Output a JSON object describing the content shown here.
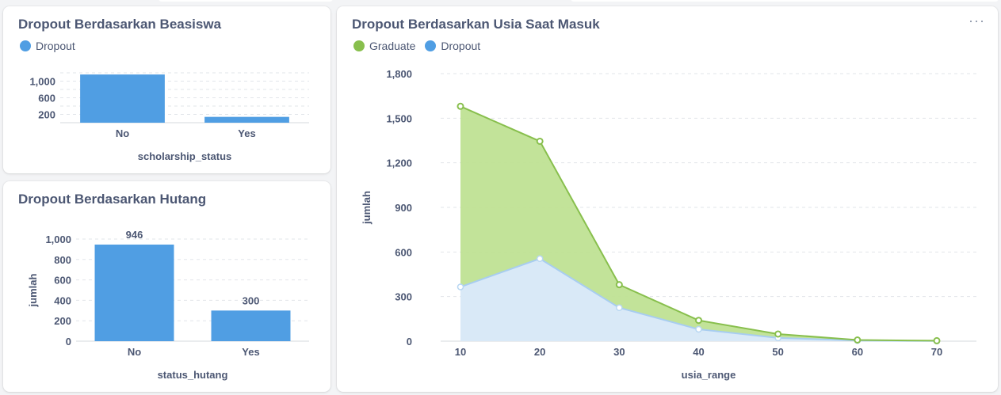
{
  "colors": {
    "dropout": "#509ee3",
    "graduate": "#88bf4d",
    "graduate_fill": "#bfe194",
    "dropout_fill": "#d9e9f7",
    "text": "#4c5773",
    "grid": "#e2e5ea"
  },
  "cards": {
    "beasiswa": {
      "title": "Dropout Berdasarkan Beasiswa",
      "legend": [
        "Dropout"
      ]
    },
    "hutang": {
      "title": "Dropout Berdasarkan Hutang"
    },
    "usia": {
      "title": "Dropout Berdasarkan Usia Saat Masuk",
      "legend": [
        "Graduate",
        "Dropout"
      ],
      "menu_icon": "more-horizontal-icon",
      "menu_glyph": "···"
    }
  },
  "chart_data": [
    {
      "id": "beasiswa",
      "type": "bar",
      "categories": [
        "No",
        "Yes"
      ],
      "series": [
        {
          "name": "Dropout",
          "values": [
            1160,
            140
          ]
        }
      ],
      "xlabel": "scholarship_status",
      "ylabel": "",
      "ylim": [
        0,
        1200
      ],
      "yticks": [
        200,
        600,
        1000
      ],
      "ytick_labels": [
        "200",
        "600",
        "1,000"
      ],
      "grid": true,
      "legend": "top-left"
    },
    {
      "id": "hutang",
      "type": "bar",
      "categories": [
        "No",
        "Yes"
      ],
      "values": [
        946,
        300
      ],
      "data_labels": [
        "946",
        "300"
      ],
      "xlabel": "status_hutang",
      "ylabel": "jumlah",
      "ylim": [
        0,
        1000
      ],
      "yticks": [
        0,
        200,
        400,
        600,
        800,
        1000
      ],
      "ytick_labels": [
        "0",
        "200",
        "400",
        "600",
        "800",
        "1,000"
      ],
      "grid": true
    },
    {
      "id": "usia",
      "type": "area",
      "x": [
        10,
        20,
        30,
        40,
        50,
        60,
        70
      ],
      "series": [
        {
          "name": "Graduate",
          "values": [
            1580,
            1345,
            380,
            140,
            48,
            8,
            3
          ]
        },
        {
          "name": "Dropout",
          "values": [
            365,
            555,
            225,
            80,
            22,
            4,
            1
          ]
        }
      ],
      "xlabel": "usia_range",
      "ylabel": "jumlah",
      "xlim": [
        10,
        70
      ],
      "ylim": [
        0,
        1800
      ],
      "yticks": [
        0,
        300,
        600,
        900,
        1200,
        1500,
        1800
      ],
      "ytick_labels": [
        "0",
        "300",
        "600",
        "900",
        "1,200",
        "1,500",
        "1,800"
      ],
      "grid": true,
      "legend": "top-left"
    }
  ]
}
